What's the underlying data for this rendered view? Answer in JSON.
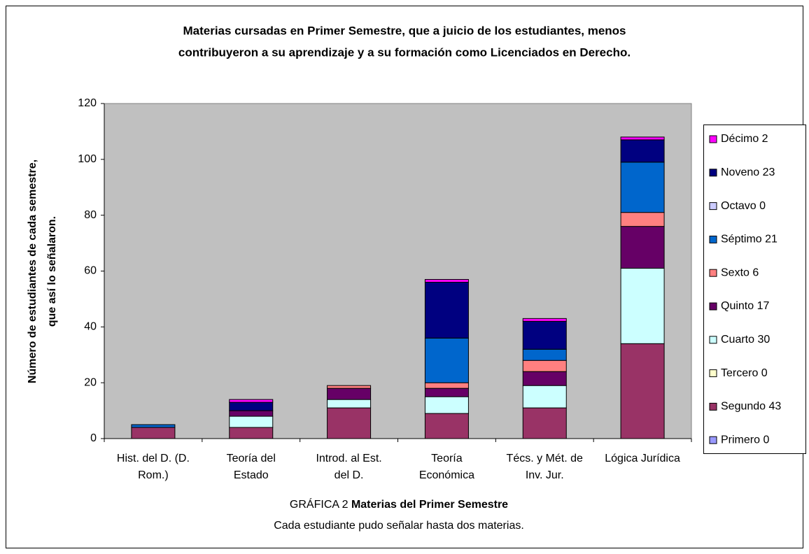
{
  "chart_data": {
    "type": "stacked_bar",
    "title": [
      "Materias cursadas en Primer Semestre, que a juicio de los estudiantes, menos",
      "contribuyeron a su aprendizaje y a su formación como Licenciados en Derecho."
    ],
    "y_label": [
      "Número de estudiantes de cada semestre,",
      "que así lo señalaron."
    ],
    "x_label": {
      "prefix": "GRÁFICA 2",
      "text": "Materias del Primer Semestre"
    },
    "note": "Cada estudiante pudo señalar hasta dos materias.",
    "categories": [
      "Hist. del D. (D. Rom.)",
      "Teoría del Estado",
      "Introd. al Est. del D.",
      "Teoría Económica",
      "Técs. y Mét. de Inv. Jur.",
      "Lógica Jurídica"
    ],
    "series": [
      {
        "name": "Primero 0",
        "color": "#9999ff",
        "values": [
          0,
          0,
          0,
          0,
          0,
          0
        ]
      },
      {
        "name": "Segundo 43",
        "color": "#993366",
        "values": [
          4,
          4,
          11,
          9,
          11,
          34
        ]
      },
      {
        "name": "Tercero 0",
        "color": "#ffffcc",
        "values": [
          0,
          0,
          0,
          0,
          0,
          0
        ]
      },
      {
        "name": "Cuarto 30",
        "color": "#ccffff",
        "values": [
          0,
          4,
          3,
          6,
          8,
          27
        ]
      },
      {
        "name": "Quinto 17",
        "color": "#660066",
        "values": [
          0,
          2,
          4,
          3,
          5,
          15
        ]
      },
      {
        "name": "Sexto 6",
        "color": "#ff8080",
        "values": [
          0,
          0,
          1,
          2,
          4,
          5
        ]
      },
      {
        "name": "Séptimo 21",
        "color": "#0066cc",
        "values": [
          1,
          0,
          0,
          16,
          4,
          18
        ]
      },
      {
        "name": "Octavo 0",
        "color": "#ccccff",
        "values": [
          0,
          0,
          0,
          0,
          0,
          0
        ]
      },
      {
        "name": "Noveno 23",
        "color": "#000080",
        "values": [
          0,
          3,
          0,
          20,
          10,
          8
        ]
      },
      {
        "name": "Décimo 2",
        "color": "#ff00ff",
        "values": [
          0,
          1,
          0,
          1,
          1,
          1
        ]
      }
    ],
    "ylim": [
      0,
      120
    ],
    "yticks": [
      0,
      20,
      40,
      60,
      80,
      100,
      120
    ],
    "grid": false,
    "plot_color": "#c0c0c0",
    "legend": "right"
  }
}
